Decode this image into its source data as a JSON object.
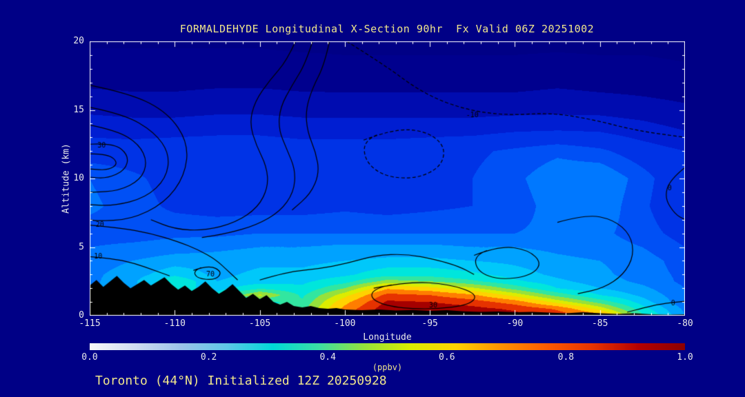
{
  "chart_data": {
    "type": "heatmap",
    "title": "FORMALDEHYDE Longitudinal X-Section 90hr  Fx Valid 06Z 20251002",
    "annotation": "Toronto (44°N) Initialized 12Z 20250928",
    "xlabel": "Longitude",
    "ylabel": "Altitude (km)",
    "xlim": [
      -115,
      -80
    ],
    "ylim": [
      0,
      20
    ],
    "x_ticks": [
      -115,
      -110,
      -105,
      -100,
      -95,
      -90,
      -85,
      -80
    ],
    "y_ticks": [
      0,
      5,
      10,
      15,
      20
    ],
    "colors": {
      "background": "#000086",
      "title_text": "#F0E68C",
      "axis_text": "#EAEAEA",
      "frame": "#FFFFFF",
      "terrain": "#000000",
      "contour_line": "#000000"
    },
    "fill_levels": [
      0.08,
      0.16,
      0.24,
      0.3,
      0.36,
      0.4,
      0.44,
      0.48,
      0.52,
      0.57,
      0.62,
      0.67,
      0.72,
      0.78,
      0.84,
      0.9
    ],
    "fill_colors": [
      "#000086",
      "#00008e",
      "#000cb0",
      "#001ed2",
      "#0033e6",
      "#0050f5",
      "#0078ff",
      "#00a2ff",
      "#00c8fa",
      "#00e6dc",
      "#32e6a0",
      "#96e13c",
      "#dcec00",
      "#ffd200",
      "#ff7d00",
      "#e63200",
      "#a50000"
    ],
    "field": {
      "lons": [
        -115,
        -112.5,
        -110,
        -107.5,
        -105,
        -102.5,
        -100,
        -97.5,
        -95,
        -92.5,
        -90,
        -87.5,
        -85,
        -82.5,
        -80
      ],
      "alts": [
        0,
        0.5,
        1,
        1.5,
        2,
        2.5,
        3,
        4,
        5,
        6,
        8,
        10,
        12,
        14,
        16,
        18,
        20
      ],
      "values_ppbv": [
        [
          0.45,
          0.45,
          0.5,
          0.51,
          0.56,
          0.61,
          0.82,
          0.95,
          0.95,
          0.94,
          0.92,
          0.88,
          0.82,
          0.58,
          0.44
        ],
        [
          0.45,
          0.45,
          0.5,
          0.51,
          0.56,
          0.6,
          0.8,
          0.94,
          0.94,
          0.92,
          0.89,
          0.83,
          0.7,
          0.54,
          0.43
        ],
        [
          0.44,
          0.45,
          0.5,
          0.52,
          0.56,
          0.58,
          0.76,
          0.91,
          0.9,
          0.87,
          0.81,
          0.7,
          0.6,
          0.5,
          0.41
        ],
        [
          0.44,
          0.46,
          0.52,
          0.54,
          0.68,
          0.56,
          0.7,
          0.86,
          0.84,
          0.79,
          0.7,
          0.6,
          0.52,
          0.47,
          0.41
        ],
        [
          0.43,
          0.47,
          0.54,
          0.5,
          0.56,
          0.53,
          0.62,
          0.77,
          0.74,
          0.68,
          0.6,
          0.52,
          0.48,
          0.45,
          0.4
        ],
        [
          0.43,
          0.47,
          0.56,
          0.48,
          0.5,
          0.51,
          0.55,
          0.64,
          0.62,
          0.58,
          0.53,
          0.49,
          0.46,
          0.43,
          0.39
        ],
        [
          0.43,
          0.46,
          0.51,
          0.47,
          0.49,
          0.49,
          0.51,
          0.55,
          0.55,
          0.53,
          0.5,
          0.47,
          0.45,
          0.42,
          0.39
        ],
        [
          0.42,
          0.44,
          0.46,
          0.46,
          0.47,
          0.47,
          0.48,
          0.49,
          0.49,
          0.48,
          0.47,
          0.45,
          0.44,
          0.42,
          0.38
        ],
        [
          0.4,
          0.41,
          0.42,
          0.43,
          0.44,
          0.44,
          0.45,
          0.45,
          0.45,
          0.44,
          0.44,
          0.43,
          0.42,
          0.4,
          0.36
        ],
        [
          0.38,
          0.38,
          0.39,
          0.39,
          0.4,
          0.4,
          0.4,
          0.4,
          0.4,
          0.4,
          0.4,
          0.41,
          0.41,
          0.38,
          0.34
        ],
        [
          0.41,
          0.38,
          0.35,
          0.34,
          0.34,
          0.34,
          0.35,
          0.34,
          0.35,
          0.36,
          0.38,
          0.42,
          0.43,
          0.37,
          0.31
        ],
        [
          0.4,
          0.37,
          0.34,
          0.33,
          0.33,
          0.33,
          0.34,
          0.33,
          0.34,
          0.36,
          0.39,
          0.43,
          0.44,
          0.38,
          0.31
        ],
        [
          0.33,
          0.33,
          0.34,
          0.34,
          0.34,
          0.33,
          0.33,
          0.33,
          0.34,
          0.35,
          0.37,
          0.39,
          0.37,
          0.33,
          0.3
        ],
        [
          0.27,
          0.26,
          0.26,
          0.27,
          0.27,
          0.26,
          0.26,
          0.26,
          0.26,
          0.26,
          0.27,
          0.27,
          0.27,
          0.25,
          0.22
        ],
        [
          0.18,
          0.17,
          0.17,
          0.18,
          0.18,
          0.17,
          0.17,
          0.17,
          0.17,
          0.17,
          0.17,
          0.18,
          0.17,
          0.16,
          0.14
        ],
        [
          0.11,
          0.11,
          0.11,
          0.11,
          0.11,
          0.11,
          0.1,
          0.1,
          0.1,
          0.1,
          0.1,
          0.11,
          0.1,
          0.1,
          0.09
        ],
        [
          0.07,
          0.07,
          0.07,
          0.07,
          0.07,
          0.06,
          0.06,
          0.06,
          0.06,
          0.06,
          0.06,
          0.06,
          0.06,
          0.06,
          0.05
        ]
      ]
    },
    "terrain": {
      "lons": [
        -115,
        -114.6,
        -114.2,
        -113.8,
        -113.4,
        -113,
        -112.6,
        -112.2,
        -111.8,
        -111.4,
        -111,
        -110.6,
        -110.2,
        -109.8,
        -109.4,
        -109,
        -108.6,
        -108.2,
        -107.8,
        -107.4,
        -107,
        -106.6,
        -106.2,
        -105.8,
        -105.4,
        -105,
        -104.6,
        -104.2,
        -103.8,
        -103.4,
        -103,
        -102.5,
        -102,
        -101.5,
        -101,
        -100.5,
        -100,
        -99,
        -98,
        -97,
        -96,
        -95,
        -94,
        -93,
        -92,
        -91,
        -90,
        -89,
        -88,
        -87,
        -86,
        -85,
        -84,
        -83,
        -82,
        -81,
        -80
      ],
      "elev_km": [
        2.2,
        2.6,
        2.1,
        2.5,
        2.9,
        2.4,
        2.0,
        2.3,
        2.6,
        2.2,
        2.5,
        2.8,
        2.3,
        1.9,
        2.2,
        1.8,
        2.1,
        2.5,
        2.0,
        1.6,
        1.9,
        2.3,
        1.8,
        1.3,
        1.6,
        1.2,
        1.5,
        1.0,
        0.8,
        1.0,
        0.7,
        0.6,
        0.7,
        0.55,
        0.5,
        0.55,
        0.45,
        0.4,
        0.45,
        0.38,
        0.42,
        0.35,
        0.4,
        0.32,
        0.28,
        0.3,
        0.25,
        0.28,
        0.22,
        0.18,
        0.25,
        0.18,
        0.12,
        0.18,
        0.1,
        0.08,
        0.1
      ]
    },
    "contour_lines": [
      {
        "label": "",
        "dashed": false,
        "closed": false,
        "points": [
          [
            -115,
            16.8
          ],
          [
            -112.6,
            16.2
          ],
          [
            -110.4,
            14.8
          ],
          [
            -109.2,
            12.6
          ],
          [
            -109.4,
            10.2
          ],
          [
            -110.6,
            8.2
          ],
          [
            -112.6,
            7.0
          ],
          [
            -114.6,
            6.9
          ],
          [
            -115,
            7.0
          ]
        ]
      },
      {
        "label": "",
        "dashed": false,
        "closed": false,
        "points": [
          [
            -115,
            15.2
          ],
          [
            -113.0,
            14.7
          ],
          [
            -111.2,
            13.4
          ],
          [
            -110.3,
            11.8
          ],
          [
            -110.5,
            10.0
          ],
          [
            -111.7,
            8.6
          ],
          [
            -113.6,
            8.0
          ],
          [
            -115,
            8.1
          ]
        ]
      },
      {
        "label": "30",
        "label_at": [
          -114.3,
          12.4
        ],
        "dashed": false,
        "closed": false,
        "points": [
          [
            -115,
            13.9
          ],
          [
            -113.4,
            13.5
          ],
          [
            -112.1,
            12.5
          ],
          [
            -111.6,
            11.2
          ],
          [
            -112.0,
            9.9
          ],
          [
            -113.3,
            9.1
          ],
          [
            -114.8,
            9.0
          ],
          [
            -115,
            9.0
          ]
        ]
      },
      {
        "label": "",
        "dashed": false,
        "closed": false,
        "points": [
          [
            -115,
            12.5
          ],
          [
            -113.6,
            12.6
          ],
          [
            -112.7,
            11.7
          ],
          [
            -112.9,
            10.6
          ],
          [
            -114.0,
            10.0
          ],
          [
            -115,
            10.1
          ]
        ]
      },
      {
        "label": "",
        "dashed": false,
        "closed": false,
        "points": [
          [
            -115,
            11.8
          ],
          [
            -113.9,
            11.8
          ],
          [
            -113.3,
            11.1
          ],
          [
            -113.9,
            10.6
          ],
          [
            -115,
            10.7
          ]
        ]
      },
      {
        "label": "20",
        "label_at": [
          -114.4,
          6.6
        ],
        "dashed": false,
        "closed": false,
        "points": [
          [
            -115,
            6.6
          ],
          [
            -113.2,
            6.4
          ],
          [
            -111.4,
            6.0
          ],
          [
            -109.8,
            5.4
          ],
          [
            -108.6,
            4.8
          ],
          [
            -107.6,
            4.1
          ],
          [
            -106.9,
            3.3
          ],
          [
            -106.3,
            2.6
          ]
        ]
      },
      {
        "label": "10",
        "label_at": [
          -114.5,
          4.3
        ],
        "dashed": false,
        "closed": false,
        "points": [
          [
            -115,
            4.3
          ],
          [
            -113.6,
            4.15
          ],
          [
            -112.3,
            3.8
          ],
          [
            -111.2,
            3.3
          ],
          [
            -110.3,
            2.9
          ]
        ]
      },
      {
        "label": "",
        "dashed": false,
        "closed": false,
        "points": [
          [
            -102.9,
            20
          ],
          [
            -103.4,
            18.6
          ],
          [
            -104.4,
            17.2
          ],
          [
            -105.3,
            15.6
          ],
          [
            -105.6,
            14.0
          ],
          [
            -105.2,
            12.4
          ],
          [
            -104.6,
            10.9
          ],
          [
            -104.5,
            9.4
          ],
          [
            -105.1,
            7.9
          ],
          [
            -106.4,
            6.8
          ],
          [
            -108.2,
            6.2
          ],
          [
            -110.0,
            6.3
          ],
          [
            -111.4,
            7.0
          ]
        ]
      },
      {
        "label": "",
        "dashed": false,
        "closed": false,
        "points": [
          [
            -101.9,
            20
          ],
          [
            -102.3,
            18.4
          ],
          [
            -103.1,
            16.8
          ],
          [
            -103.8,
            15.2
          ],
          [
            -103.9,
            13.6
          ],
          [
            -103.4,
            12.1
          ],
          [
            -102.9,
            10.6
          ],
          [
            -103.0,
            9.0
          ],
          [
            -103.8,
            7.6
          ],
          [
            -105.2,
            6.6
          ],
          [
            -106.9,
            6.0
          ],
          [
            -108.4,
            5.7
          ]
        ]
      },
      {
        "label": "",
        "dashed": false,
        "closed": false,
        "points": [
          [
            -100.9,
            20
          ],
          [
            -101.2,
            18.3
          ],
          [
            -101.9,
            16.6
          ],
          [
            -102.3,
            15.0
          ],
          [
            -102.2,
            13.4
          ],
          [
            -101.7,
            11.9
          ],
          [
            -101.5,
            10.4
          ],
          [
            -102.0,
            8.9
          ],
          [
            -103.1,
            7.7
          ]
        ]
      },
      {
        "label": "",
        "dashed": true,
        "closed": true,
        "points": [
          [
            -98.9,
            12.8
          ],
          [
            -97.2,
            13.6
          ],
          [
            -95.3,
            13.5
          ],
          [
            -94.1,
            12.4
          ],
          [
            -94.3,
            10.9
          ],
          [
            -95.7,
            10.0
          ],
          [
            -97.6,
            10.1
          ],
          [
            -98.8,
            11.2
          ]
        ]
      },
      {
        "label": "-10",
        "label_at": [
          -92.5,
          14.6
        ],
        "dashed": true,
        "closed": false,
        "points": [
          [
            -99.9,
            20
          ],
          [
            -97.8,
            18.4
          ],
          [
            -95.4,
            16.2
          ],
          [
            -92.9,
            15.0
          ],
          [
            -90.4,
            14.6
          ],
          [
            -87.9,
            14.8
          ],
          [
            -85.4,
            14.3
          ],
          [
            -82.9,
            13.5
          ],
          [
            -80,
            13.0
          ]
        ]
      },
      {
        "label": "0",
        "label_at": [
          -80.9,
          9.3
        ],
        "dashed": false,
        "closed": false,
        "points": [
          [
            -80,
            10.8
          ],
          [
            -80.9,
            9.9
          ],
          [
            -81.2,
            8.6
          ],
          [
            -80.6,
            7.4
          ],
          [
            -80,
            7.0
          ]
        ]
      },
      {
        "label": "",
        "dashed": false,
        "closed": false,
        "points": [
          [
            -87.5,
            6.8
          ],
          [
            -85.8,
            7.4
          ],
          [
            -84.2,
            7.0
          ],
          [
            -83.2,
            5.9
          ],
          [
            -83.0,
            4.4
          ],
          [
            -83.6,
            3.0
          ],
          [
            -84.8,
            2.0
          ],
          [
            -86.3,
            1.6
          ]
        ]
      },
      {
        "label": "0",
        "label_at": [
          -80.7,
          0.9
        ],
        "dashed": false,
        "closed": false,
        "points": [
          [
            -80,
            1.05
          ],
          [
            -81.3,
            0.9
          ],
          [
            -82.5,
            0.55
          ],
          [
            -83.4,
            0.25
          ]
        ]
      },
      {
        "label": "30",
        "label_at": [
          -94.8,
          0.75
        ],
        "dashed": false,
        "closed": true,
        "points": [
          [
            -98.3,
            2.0
          ],
          [
            -96.2,
            2.5
          ],
          [
            -93.9,
            2.3
          ],
          [
            -92.2,
            1.6
          ],
          [
            -92.6,
            0.8
          ],
          [
            -94.8,
            0.45
          ],
          [
            -97.2,
            0.6
          ],
          [
            -98.5,
            1.2
          ]
        ]
      },
      {
        "label": "",
        "dashed": false,
        "closed": true,
        "points": [
          [
            -92.4,
            4.4
          ],
          [
            -90.9,
            5.1
          ],
          [
            -89.2,
            4.8
          ],
          [
            -88.4,
            3.8
          ],
          [
            -89.1,
            2.9
          ],
          [
            -90.9,
            2.6
          ],
          [
            -92.2,
            3.2
          ]
        ]
      },
      {
        "label": "70",
        "label_at": [
          -107.9,
          3.0
        ],
        "dashed": false,
        "closed": true,
        "points": [
          [
            -108.9,
            3.3
          ],
          [
            -108.0,
            3.7
          ],
          [
            -107.2,
            3.2
          ],
          [
            -107.6,
            2.6
          ],
          [
            -108.7,
            2.7
          ]
        ]
      },
      {
        "label": "",
        "dashed": false,
        "closed": false,
        "points": [
          [
            -105.0,
            2.6
          ],
          [
            -103.4,
            3.2
          ],
          [
            -101.6,
            3.4
          ],
          [
            -99.9,
            3.8
          ],
          [
            -98.2,
            4.4
          ],
          [
            -96.4,
            4.5
          ],
          [
            -94.7,
            4.1
          ],
          [
            -93.3,
            3.6
          ],
          [
            -92.4,
            3.0
          ]
        ]
      }
    ],
    "colorbar": {
      "label": "(ppbv)",
      "range": [
        0.0,
        1.0
      ],
      "ticks": [
        0.0,
        0.2,
        0.4,
        0.6,
        0.8,
        1.0
      ],
      "colors": [
        "#fafafa",
        "#cfdcf2",
        "#9cc2ea",
        "#5ec8e8",
        "#00d8d8",
        "#3cdfa5",
        "#96e13c",
        "#d9ec00",
        "#ffd200",
        "#ff9100",
        "#ff5a00",
        "#e63200",
        "#b40000",
        "#8c0000"
      ]
    }
  }
}
